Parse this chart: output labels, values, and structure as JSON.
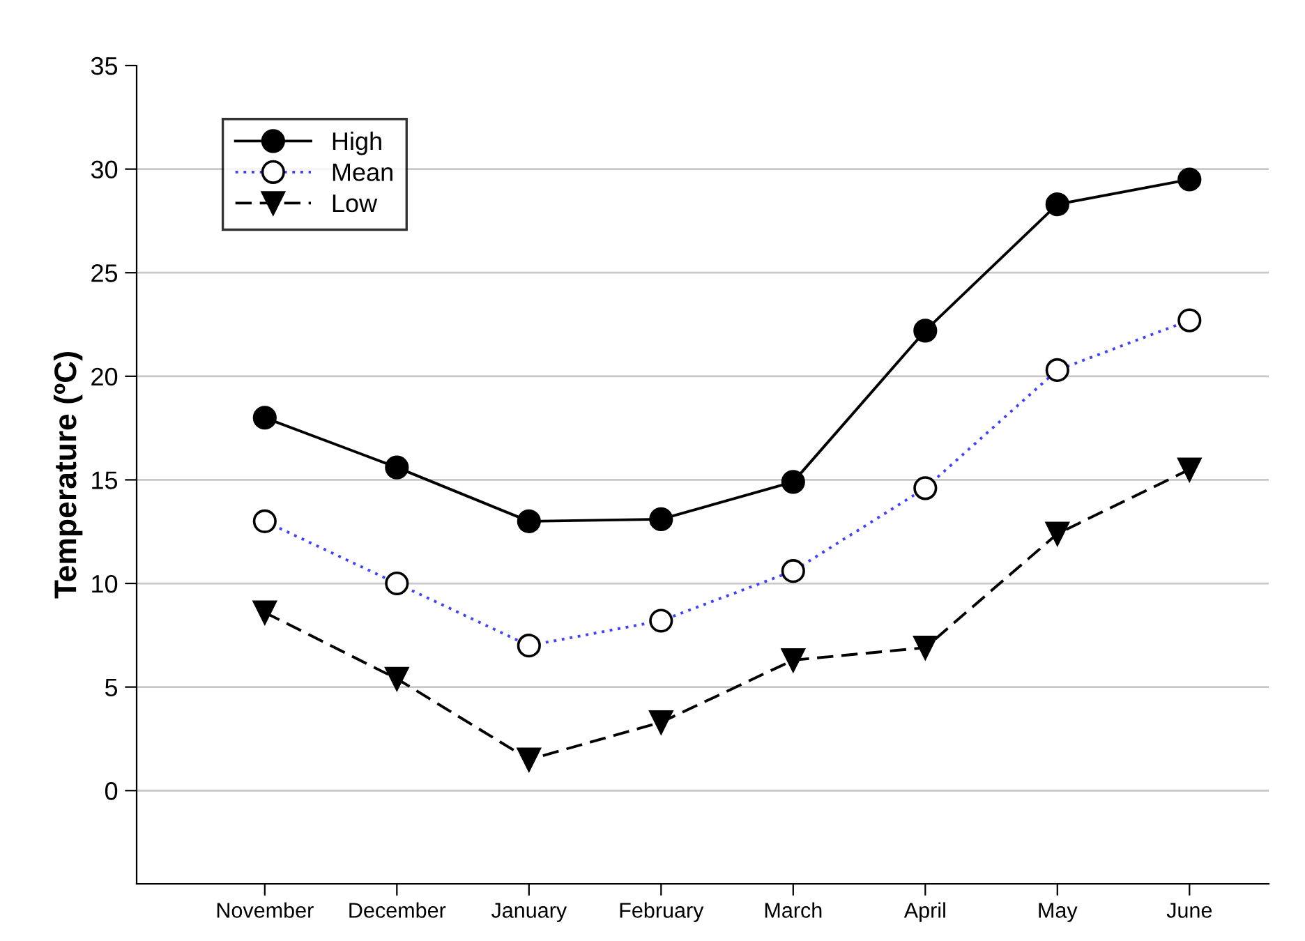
{
  "chart_data": {
    "type": "line",
    "ylabel": "Temperature (ºC)",
    "categories": [
      "November",
      "December",
      "January",
      "February",
      "March",
      "April",
      "May",
      "June"
    ],
    "series": [
      {
        "name": "High",
        "color": "#000000",
        "marker": "circle",
        "line_style": "solid",
        "values": [
          18,
          15.6,
          13,
          13.1,
          14.9,
          22.2,
          28.3,
          29.5
        ]
      },
      {
        "name": "Mean",
        "color": "#4040ff",
        "marker": "circle",
        "line_style": "dotted",
        "values": [
          13,
          10,
          7,
          8.2,
          10.6,
          14.6,
          20.3,
          22.7
        ]
      },
      {
        "name": "Low",
        "color": "#000000",
        "marker": "triangle",
        "line_style": "dashed",
        "values": [
          8.6,
          5.4,
          1.5,
          3.3,
          6.3,
          6.9,
          12.4,
          15.5
        ]
      }
    ],
    "ylim": [
      -4.5,
      35
    ],
    "yticks": [
      0,
      5,
      10,
      15,
      20,
      25,
      30,
      35
    ],
    "grid": "y",
    "legend": "top left"
  }
}
